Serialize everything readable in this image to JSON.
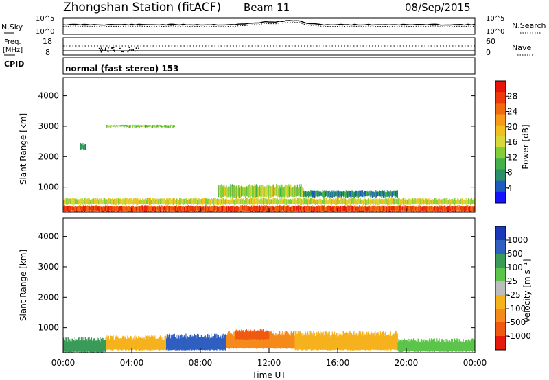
{
  "header": {
    "station": "Zhongshan Station (fitACF)",
    "beam": "Beam 11",
    "date": "08/Sep/2015"
  },
  "noise_panel": {
    "left_label": "N.Sky",
    "right_label": "N.Search",
    "left_ticks": [
      "10^5",
      "10^0"
    ],
    "right_ticks": [
      "10^5",
      "10^0"
    ]
  },
  "freq_panel": {
    "left_label_line1": "Freq.",
    "left_label_line2": "[MHz]",
    "right_label": "Nave",
    "left_ticks": [
      "18",
      "8"
    ],
    "right_ticks": [
      "60",
      "0"
    ]
  },
  "cpid": {
    "label": "CPID",
    "value": "normal (fast stereo) 153"
  },
  "power_panel": {
    "ylabel": "Slant Range [km]",
    "yticks": [
      "4000",
      "3000",
      "2000",
      "1000"
    ],
    "colorbar_label": "Power [dB]",
    "colorbar_ticks": [
      "28",
      "24",
      "20",
      "16",
      "12",
      "8",
      "4"
    ],
    "colors": [
      "#1414ff",
      "#1d5bbd",
      "#2b8f6a",
      "#45b04a",
      "#7fce3a",
      "#d8d83a",
      "#f0c020",
      "#f79a1a",
      "#f26a10",
      "#ee3a0a",
      "#e8140a"
    ]
  },
  "velocity_panel": {
    "ylabel": "Slant Range [km]",
    "yticks": [
      "4000",
      "3000",
      "2000",
      "1000"
    ],
    "colorbar_label": "Velocity [m s⁻¹]",
    "colorbar_ticks": [
      "1000",
      "500",
      "100",
      "25",
      "-25",
      "-100",
      "-500",
      "-1000"
    ],
    "colors": [
      "#1a38b8",
      "#2f5fc0",
      "#3a9a58",
      "#5cc44a",
      "#bdbdbd",
      "#f6b21c",
      "#f58a1a",
      "#f05a10",
      "#e41a0a"
    ]
  },
  "xaxis": {
    "ticks": [
      "00:00",
      "04:00",
      "08:00",
      "12:00",
      "16:00",
      "20:00",
      "00:00"
    ],
    "label": "Time UT"
  },
  "chart_data": {
    "type": "heatmap",
    "title": "Zhongshan Station (fitACF)",
    "xlabel": "Time UT",
    "ylabel": "Slant Range [km]",
    "xlim": [
      "00:00",
      "24:00"
    ],
    "ylim": [
      180,
      4600
    ],
    "power_colorbar": {
      "label": "Power [dB]",
      "range": [
        0,
        32
      ],
      "ticks": [
        4,
        8,
        12,
        16,
        20,
        24,
        28
      ]
    },
    "velocity_colorbar": {
      "label": "Velocity [m s⁻¹]",
      "ticks": [
        1000,
        500,
        100,
        25,
        -25,
        -100,
        -500,
        -1000
      ]
    },
    "power_echo_regions": [
      {
        "t_start": 0.0,
        "t_end": 24.0,
        "r_min": 180,
        "r_max": 400,
        "power_db": 28
      },
      {
        "t_start": 0.0,
        "t_end": 24.0,
        "r_min": 400,
        "r_max": 650,
        "power_db": 16
      },
      {
        "t_start": 9.0,
        "t_end": 14.0,
        "r_min": 650,
        "r_max": 1100,
        "power_db": 14
      },
      {
        "t_start": 14.0,
        "t_end": 19.5,
        "r_min": 650,
        "r_max": 900,
        "power_db": 6
      },
      {
        "t_start": 1.0,
        "t_end": 1.3,
        "r_min": 2200,
        "r_max": 2450,
        "power_db": 8
      },
      {
        "t_start": 2.5,
        "t_end": 6.5,
        "r_min": 2950,
        "r_max": 3050,
        "power_db": 12
      }
    ],
    "velocity_echo_regions": [
      {
        "t_start": 0.0,
        "t_end": 2.5,
        "r_min": 180,
        "r_max": 700,
        "velocity": 100
      },
      {
        "t_start": 2.5,
        "t_end": 6.0,
        "r_min": 250,
        "r_max": 750,
        "velocity": -100
      },
      {
        "t_start": 6.0,
        "t_end": 9.5,
        "r_min": 250,
        "r_max": 800,
        "velocity": 500
      },
      {
        "t_start": 9.5,
        "t_end": 13.5,
        "r_min": 300,
        "r_max": 900,
        "velocity": -500
      },
      {
        "t_start": 10.0,
        "t_end": 12.0,
        "r_min": 600,
        "r_max": 950,
        "velocity": -1000
      },
      {
        "t_start": 13.5,
        "t_end": 19.5,
        "r_min": 250,
        "r_max": 900,
        "velocity": -100
      },
      {
        "t_start": 19.5,
        "t_end": 24.0,
        "r_min": 200,
        "r_max": 650,
        "velocity": 25
      }
    ]
  }
}
